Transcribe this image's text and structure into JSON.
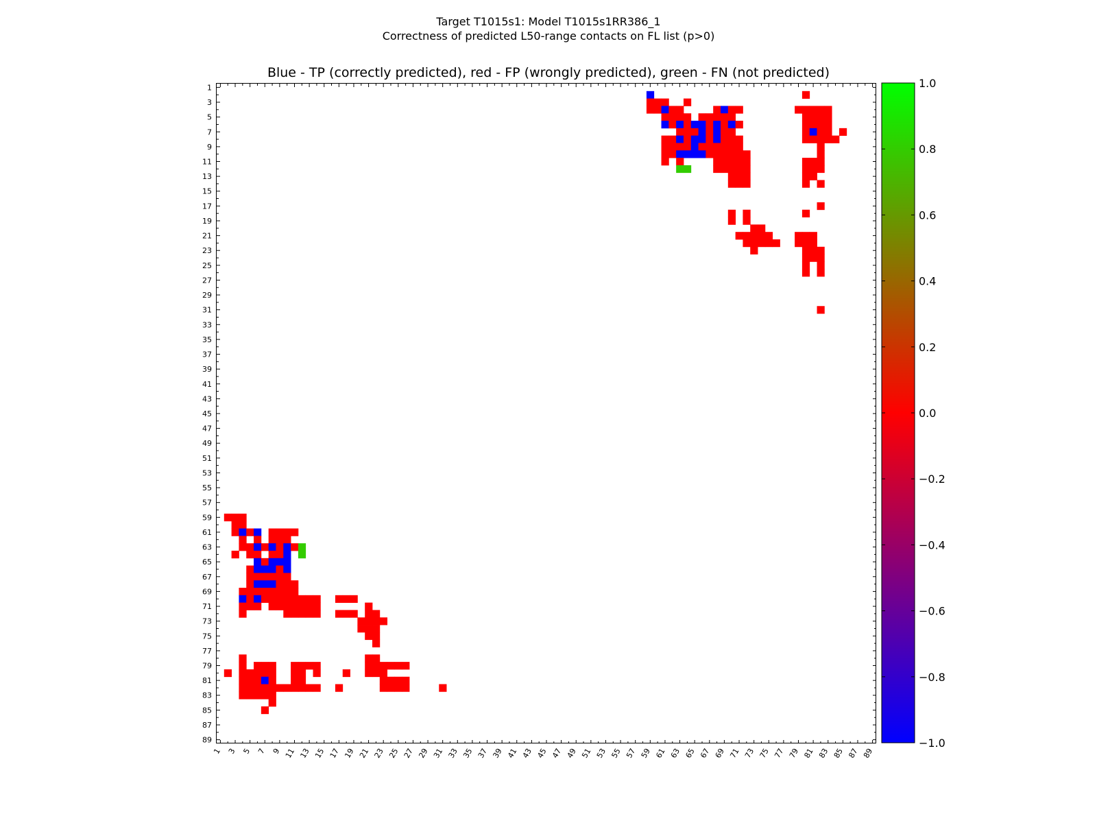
{
  "header": {
    "title_line1": "Target T1015s1: Model T1015s1RR386_1",
    "title_line2": "Correctness of predicted L50-range contacts on FL list (p>0)",
    "plot_title": "Blue - TP (correctly predicted), red - FP (wrongly predicted), green - FN (not predicted)"
  },
  "chart_data": {
    "type": "heatmap",
    "n": 89,
    "x_ticks": [
      1,
      3,
      5,
      7,
      9,
      11,
      13,
      15,
      17,
      19,
      21,
      23,
      25,
      27,
      29,
      31,
      33,
      35,
      37,
      39,
      41,
      43,
      45,
      47,
      49,
      51,
      53,
      55,
      57,
      59,
      61,
      63,
      65,
      67,
      69,
      71,
      73,
      75,
      77,
      79,
      81,
      83,
      85,
      87,
      89
    ],
    "y_ticks": [
      1,
      3,
      5,
      7,
      9,
      11,
      13,
      15,
      17,
      19,
      21,
      23,
      25,
      27,
      29,
      31,
      33,
      35,
      37,
      39,
      41,
      43,
      45,
      47,
      49,
      51,
      53,
      55,
      57,
      59,
      61,
      63,
      65,
      67,
      69,
      71,
      73,
      75,
      77,
      79,
      81,
      83,
      85,
      87,
      89
    ],
    "colorbar": {
      "min": -1.0,
      "max": 1.0,
      "ticks": [
        "1.0",
        "0.8",
        "0.6",
        "0.4",
        "0.2",
        "0.0",
        "−0.2",
        "−0.4",
        "−0.6",
        "−0.8",
        "−1.0"
      ],
      "tick_values": [
        1.0,
        0.8,
        0.6,
        0.4,
        0.2,
        0.0,
        -0.2,
        -0.4,
        -0.6,
        -0.8,
        -1.0
      ]
    },
    "legend": {
      "tp": -1,
      "fp": 0,
      "fn": 1
    },
    "colors": {
      "tp": "#0000ff",
      "fp": "#ff0000",
      "fn": "#33cc00",
      "background": "#ffffff"
    },
    "cells_upper_row_col": [
      [
        2,
        59,
        -1
      ],
      [
        2,
        80,
        0
      ],
      [
        3,
        59,
        0
      ],
      [
        3,
        60,
        0
      ],
      [
        3,
        61,
        0
      ],
      [
        3,
        64,
        0
      ],
      [
        4,
        59,
        0
      ],
      [
        4,
        60,
        0
      ],
      [
        4,
        61,
        -1
      ],
      [
        4,
        62,
        0
      ],
      [
        4,
        63,
        0
      ],
      [
        4,
        68,
        0
      ],
      [
        4,
        69,
        -1
      ],
      [
        4,
        70,
        0
      ],
      [
        4,
        71,
        0
      ],
      [
        4,
        79,
        0
      ],
      [
        4,
        80,
        0
      ],
      [
        4,
        81,
        0
      ],
      [
        4,
        82,
        0
      ],
      [
        4,
        83,
        0
      ],
      [
        5,
        61,
        0
      ],
      [
        5,
        62,
        0
      ],
      [
        5,
        63,
        0
      ],
      [
        5,
        64,
        0
      ],
      [
        5,
        66,
        0
      ],
      [
        5,
        67,
        0
      ],
      [
        5,
        68,
        0
      ],
      [
        5,
        69,
        0
      ],
      [
        5,
        70,
        0
      ],
      [
        5,
        80,
        0
      ],
      [
        5,
        81,
        0
      ],
      [
        5,
        82,
        0
      ],
      [
        5,
        83,
        0
      ],
      [
        6,
        61,
        -1
      ],
      [
        6,
        62,
        0
      ],
      [
        6,
        63,
        -1
      ],
      [
        6,
        64,
        0
      ],
      [
        6,
        65,
        -1
      ],
      [
        6,
        66,
        -1
      ],
      [
        6,
        67,
        0
      ],
      [
        6,
        68,
        -1
      ],
      [
        6,
        69,
        0
      ],
      [
        6,
        70,
        -1
      ],
      [
        6,
        71,
        0
      ],
      [
        6,
        80,
        0
      ],
      [
        6,
        81,
        0
      ],
      [
        6,
        82,
        0
      ],
      [
        6,
        83,
        0
      ],
      [
        7,
        63,
        0
      ],
      [
        7,
        64,
        0
      ],
      [
        7,
        65,
        0
      ],
      [
        7,
        66,
        -1
      ],
      [
        7,
        67,
        0
      ],
      [
        7,
        68,
        -1
      ],
      [
        7,
        69,
        0
      ],
      [
        7,
        70,
        0
      ],
      [
        7,
        80,
        0
      ],
      [
        7,
        81,
        -1
      ],
      [
        7,
        82,
        0
      ],
      [
        7,
        83,
        0
      ],
      [
        7,
        85,
        0
      ],
      [
        8,
        61,
        0
      ],
      [
        8,
        62,
        0
      ],
      [
        8,
        63,
        -1
      ],
      [
        8,
        64,
        0
      ],
      [
        8,
        65,
        -1
      ],
      [
        8,
        66,
        -1
      ],
      [
        8,
        67,
        0
      ],
      [
        8,
        68,
        -1
      ],
      [
        8,
        69,
        0
      ],
      [
        8,
        70,
        0
      ],
      [
        8,
        71,
        0
      ],
      [
        8,
        80,
        0
      ],
      [
        8,
        81,
        0
      ],
      [
        8,
        82,
        0
      ],
      [
        8,
        83,
        0
      ],
      [
        8,
        84,
        0
      ],
      [
        9,
        61,
        0
      ],
      [
        9,
        62,
        0
      ],
      [
        9,
        63,
        0
      ],
      [
        9,
        64,
        0
      ],
      [
        9,
        65,
        -1
      ],
      [
        9,
        66,
        0
      ],
      [
        9,
        67,
        0
      ],
      [
        9,
        68,
        0
      ],
      [
        9,
        69,
        0
      ],
      [
        9,
        70,
        0
      ],
      [
        9,
        71,
        0
      ],
      [
        9,
        82,
        0
      ],
      [
        10,
        61,
        0
      ],
      [
        10,
        62,
        0
      ],
      [
        10,
        63,
        -1
      ],
      [
        10,
        64,
        -1
      ],
      [
        10,
        65,
        -1
      ],
      [
        10,
        66,
        -1
      ],
      [
        10,
        67,
        0
      ],
      [
        10,
        68,
        0
      ],
      [
        10,
        69,
        0
      ],
      [
        10,
        70,
        0
      ],
      [
        10,
        71,
        0
      ],
      [
        10,
        72,
        0
      ],
      [
        10,
        82,
        0
      ],
      [
        11,
        61,
        0
      ],
      [
        11,
        63,
        0
      ],
      [
        11,
        68,
        0
      ],
      [
        11,
        69,
        0
      ],
      [
        11,
        70,
        0
      ],
      [
        11,
        71,
        0
      ],
      [
        11,
        72,
        0
      ],
      [
        11,
        80,
        0
      ],
      [
        11,
        81,
        0
      ],
      [
        11,
        82,
        0
      ],
      [
        12,
        63,
        1
      ],
      [
        12,
        64,
        1
      ],
      [
        12,
        68,
        0
      ],
      [
        12,
        69,
        0
      ],
      [
        12,
        70,
        0
      ],
      [
        12,
        71,
        0
      ],
      [
        12,
        72,
        0
      ],
      [
        12,
        80,
        0
      ],
      [
        12,
        81,
        0
      ],
      [
        12,
        82,
        0
      ],
      [
        13,
        70,
        0
      ],
      [
        13,
        71,
        0
      ],
      [
        13,
        72,
        0
      ],
      [
        13,
        80,
        0
      ],
      [
        13,
        81,
        0
      ],
      [
        14,
        70,
        0
      ],
      [
        14,
        71,
        0
      ],
      [
        14,
        72,
        0
      ],
      [
        14,
        80,
        0
      ],
      [
        14,
        82,
        0
      ],
      [
        17,
        82,
        0
      ],
      [
        18,
        70,
        0
      ],
      [
        18,
        72,
        0
      ],
      [
        18,
        80,
        0
      ],
      [
        19,
        70,
        0
      ],
      [
        19,
        72,
        0
      ],
      [
        20,
        73,
        0
      ],
      [
        20,
        74,
        0
      ],
      [
        21,
        71,
        0
      ],
      [
        21,
        72,
        0
      ],
      [
        21,
        73,
        0
      ],
      [
        21,
        74,
        0
      ],
      [
        21,
        75,
        0
      ],
      [
        21,
        79,
        0
      ],
      [
        21,
        80,
        0
      ],
      [
        21,
        81,
        0
      ],
      [
        22,
        72,
        0
      ],
      [
        22,
        73,
        0
      ],
      [
        22,
        74,
        0
      ],
      [
        22,
        75,
        0
      ],
      [
        22,
        76,
        0
      ],
      [
        22,
        79,
        0
      ],
      [
        22,
        80,
        0
      ],
      [
        22,
        81,
        0
      ],
      [
        23,
        73,
        0
      ],
      [
        23,
        80,
        0
      ],
      [
        23,
        81,
        0
      ],
      [
        23,
        82,
        0
      ],
      [
        24,
        80,
        0
      ],
      [
        24,
        81,
        0
      ],
      [
        24,
        82,
        0
      ],
      [
        25,
        80,
        0
      ],
      [
        25,
        82,
        0
      ],
      [
        26,
        80,
        0
      ],
      [
        26,
        82,
        0
      ],
      [
        31,
        82,
        0
      ]
    ],
    "cells_lower_row_col": [
      [
        59,
        2,
        0
      ],
      [
        59,
        3,
        0
      ],
      [
        59,
        4,
        0
      ],
      [
        60,
        3,
        0
      ],
      [
        60,
        4,
        0
      ],
      [
        61,
        3,
        0
      ],
      [
        61,
        4,
        -1
      ],
      [
        61,
        5,
        0
      ],
      [
        61,
        6,
        -1
      ],
      [
        61,
        8,
        0
      ],
      [
        61,
        9,
        0
      ],
      [
        61,
        10,
        0
      ],
      [
        61,
        11,
        0
      ],
      [
        62,
        4,
        0
      ],
      [
        62,
        6,
        0
      ],
      [
        62,
        8,
        0
      ],
      [
        62,
        9,
        0
      ],
      [
        62,
        10,
        0
      ],
      [
        63,
        4,
        0
      ],
      [
        63,
        5,
        0
      ],
      [
        63,
        6,
        -1
      ],
      [
        63,
        7,
        0
      ],
      [
        63,
        8,
        -1
      ],
      [
        63,
        9,
        0
      ],
      [
        63,
        10,
        -1
      ],
      [
        63,
        11,
        0
      ],
      [
        63,
        12,
        1
      ],
      [
        64,
        3,
        0
      ],
      [
        64,
        5,
        0
      ],
      [
        64,
        6,
        0
      ],
      [
        64,
        8,
        0
      ],
      [
        64,
        9,
        0
      ],
      [
        64,
        10,
        -1
      ],
      [
        64,
        12,
        1
      ],
      [
        65,
        6,
        -1
      ],
      [
        65,
        7,
        0
      ],
      [
        65,
        8,
        -1
      ],
      [
        65,
        9,
        -1
      ],
      [
        65,
        10,
        -1
      ],
      [
        66,
        5,
        0
      ],
      [
        66,
        6,
        -1
      ],
      [
        66,
        7,
        -1
      ],
      [
        66,
        8,
        -1
      ],
      [
        66,
        9,
        0
      ],
      [
        66,
        10,
        -1
      ],
      [
        67,
        5,
        0
      ],
      [
        67,
        6,
        0
      ],
      [
        67,
        7,
        0
      ],
      [
        67,
        8,
        0
      ],
      [
        67,
        9,
        0
      ],
      [
        67,
        10,
        0
      ],
      [
        68,
        5,
        0
      ],
      [
        68,
        6,
        -1
      ],
      [
        68,
        7,
        -1
      ],
      [
        68,
        8,
        -1
      ],
      [
        68,
        9,
        0
      ],
      [
        68,
        10,
        0
      ],
      [
        68,
        11,
        0
      ],
      [
        69,
        4,
        0
      ],
      [
        69,
        5,
        0
      ],
      [
        69,
        6,
        0
      ],
      [
        69,
        7,
        0
      ],
      [
        69,
        8,
        0
      ],
      [
        69,
        9,
        0
      ],
      [
        69,
        10,
        0
      ],
      [
        69,
        11,
        0
      ],
      [
        70,
        4,
        -1
      ],
      [
        70,
        5,
        0
      ],
      [
        70,
        6,
        -1
      ],
      [
        70,
        7,
        0
      ],
      [
        70,
        8,
        0
      ],
      [
        70,
        9,
        0
      ],
      [
        70,
        10,
        0
      ],
      [
        70,
        11,
        0
      ],
      [
        70,
        12,
        0
      ],
      [
        70,
        13,
        0
      ],
      [
        70,
        14,
        0
      ],
      [
        70,
        17,
        0
      ],
      [
        70,
        18,
        0
      ],
      [
        70,
        19,
        0
      ],
      [
        71,
        4,
        0
      ],
      [
        71,
        5,
        0
      ],
      [
        71,
        6,
        0
      ],
      [
        71,
        8,
        0
      ],
      [
        71,
        9,
        0
      ],
      [
        71,
        10,
        0
      ],
      [
        71,
        11,
        0
      ],
      [
        71,
        12,
        0
      ],
      [
        71,
        13,
        0
      ],
      [
        71,
        14,
        0
      ],
      [
        71,
        21,
        0
      ],
      [
        72,
        4,
        0
      ],
      [
        72,
        10,
        0
      ],
      [
        72,
        11,
        0
      ],
      [
        72,
        12,
        0
      ],
      [
        72,
        13,
        0
      ],
      [
        72,
        14,
        0
      ],
      [
        72,
        17,
        0
      ],
      [
        72,
        18,
        0
      ],
      [
        72,
        19,
        0
      ],
      [
        72,
        21,
        0
      ],
      [
        72,
        22,
        0
      ],
      [
        73,
        20,
        0
      ],
      [
        73,
        21,
        0
      ],
      [
        73,
        22,
        0
      ],
      [
        73,
        23,
        0
      ],
      [
        74,
        20,
        0
      ],
      [
        74,
        21,
        0
      ],
      [
        74,
        22,
        0
      ],
      [
        75,
        21,
        0
      ],
      [
        75,
        22,
        0
      ],
      [
        76,
        22,
        0
      ],
      [
        78,
        4,
        0
      ],
      [
        78,
        21,
        0
      ],
      [
        78,
        22,
        0
      ],
      [
        79,
        4,
        0
      ],
      [
        79,
        6,
        0
      ],
      [
        79,
        7,
        0
      ],
      [
        79,
        8,
        0
      ],
      [
        79,
        11,
        0
      ],
      [
        79,
        12,
        0
      ],
      [
        79,
        13,
        0
      ],
      [
        79,
        14,
        0
      ],
      [
        79,
        21,
        0
      ],
      [
        79,
        22,
        0
      ],
      [
        79,
        23,
        0
      ],
      [
        79,
        24,
        0
      ],
      [
        79,
        25,
        0
      ],
      [
        79,
        26,
        0
      ],
      [
        80,
        2,
        0
      ],
      [
        80,
        4,
        0
      ],
      [
        80,
        5,
        0
      ],
      [
        80,
        6,
        0
      ],
      [
        80,
        7,
        0
      ],
      [
        80,
        8,
        0
      ],
      [
        80,
        11,
        0
      ],
      [
        80,
        12,
        0
      ],
      [
        80,
        14,
        0
      ],
      [
        80,
        18,
        0
      ],
      [
        80,
        21,
        0
      ],
      [
        80,
        22,
        0
      ],
      [
        80,
        23,
        0
      ],
      [
        81,
        4,
        0
      ],
      [
        81,
        5,
        0
      ],
      [
        81,
        6,
        0
      ],
      [
        81,
        7,
        -1
      ],
      [
        81,
        8,
        0
      ],
      [
        81,
        11,
        0
      ],
      [
        81,
        12,
        0
      ],
      [
        81,
        23,
        0
      ],
      [
        81,
        24,
        0
      ],
      [
        81,
        25,
        0
      ],
      [
        81,
        26,
        0
      ],
      [
        82,
        4,
        0
      ],
      [
        82,
        5,
        0
      ],
      [
        82,
        6,
        0
      ],
      [
        82,
        7,
        0
      ],
      [
        82,
        8,
        0
      ],
      [
        82,
        9,
        0
      ],
      [
        82,
        10,
        0
      ],
      [
        82,
        11,
        0
      ],
      [
        82,
        12,
        0
      ],
      [
        82,
        13,
        0
      ],
      [
        82,
        14,
        0
      ],
      [
        82,
        17,
        0
      ],
      [
        82,
        23,
        0
      ],
      [
        82,
        24,
        0
      ],
      [
        82,
        25,
        0
      ],
      [
        82,
        26,
        0
      ],
      [
        82,
        31,
        0
      ],
      [
        83,
        4,
        0
      ],
      [
        83,
        5,
        0
      ],
      [
        83,
        6,
        0
      ],
      [
        83,
        7,
        0
      ],
      [
        83,
        8,
        0
      ],
      [
        84,
        8,
        0
      ],
      [
        85,
        7,
        0
      ]
    ]
  }
}
